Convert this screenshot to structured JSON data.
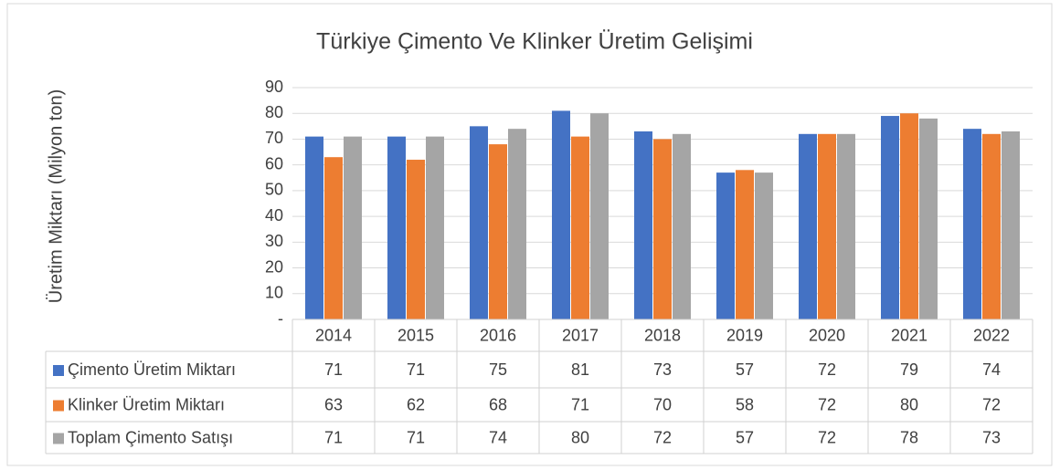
{
  "chart_data": {
    "type": "bar",
    "title": "Türkiye Çimento Ve Klinker Üretim Gelişimi",
    "y_label": "Üretim Miktarı (Milyon ton)",
    "categories": [
      "2014",
      "2015",
      "2016",
      "2017",
      "2018",
      "2019",
      "2020",
      "2021",
      "2022"
    ],
    "series": [
      {
        "name": "Çimento Üretim Miktarı",
        "color": "#4472c4",
        "values": [
          71,
          71,
          75,
          81,
          73,
          57,
          72,
          79,
          74
        ]
      },
      {
        "name": "Klinker Üretim Miktarı",
        "color": "#ed7d31",
        "values": [
          63,
          62,
          68,
          71,
          70,
          58,
          72,
          80,
          72
        ]
      },
      {
        "name": "Toplam Çimento Satışı",
        "color": "#a5a5a5",
        "values": [
          71,
          71,
          74,
          80,
          72,
          57,
          72,
          78,
          73
        ]
      }
    ],
    "ylim": [
      0,
      90
    ],
    "yticks": [
      {
        "value": 0,
        "label": "-"
      },
      10,
      20,
      30,
      40,
      50,
      60,
      70,
      80,
      90
    ],
    "grid": true,
    "data_table": true
  }
}
